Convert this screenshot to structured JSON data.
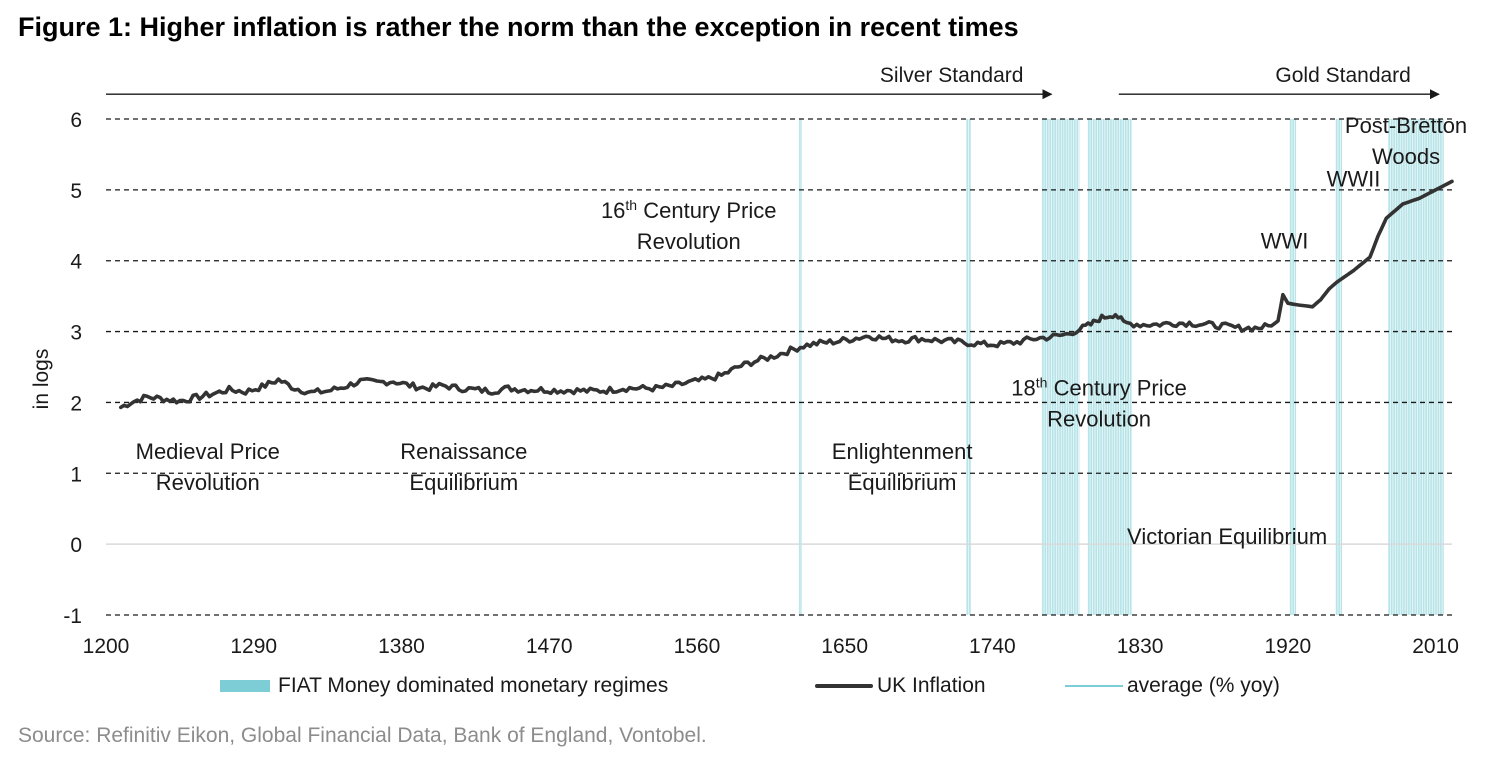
{
  "title": "Figure 1: Higher inflation is rather the norm than the exception in recent times",
  "source": "Source: Refinitiv Eikon, Global Financial Data, Bank of England, Vontobel.",
  "colors": {
    "fiat": "#7ccdd6",
    "line": "#333333",
    "grid": "#1a1a1a",
    "zero": "#d9d9d9",
    "source": "#8c8c8c"
  },
  "chart_data": {
    "type": "line",
    "title": "Figure 1: Higher inflation is rather the norm than the exception in recent times",
    "xlabel": "",
    "ylabel": "in logs",
    "xlim": [
      1200,
      2020
    ],
    "ylim": [
      -1,
      6
    ],
    "x_ticks": [
      "1200",
      "1290",
      "1380",
      "1470",
      "1560",
      "1650",
      "1740",
      "1830",
      "1920",
      "2010"
    ],
    "y_ticks": [
      "-1",
      "0",
      "1",
      "2",
      "3",
      "4",
      "5",
      "6"
    ],
    "grid": "horizontal dashed",
    "legend": {
      "position": "bottom",
      "entries": [
        "FIAT Money dominated monetary regimes",
        "UK Inflation",
        "average (% yoy)"
      ]
    },
    "series": [
      {
        "name": "UK Inflation",
        "x": [
          1209,
          1215,
          1225,
          1235,
          1245,
          1255,
          1265,
          1275,
          1285,
          1295,
          1305,
          1315,
          1325,
          1335,
          1345,
          1355,
          1365,
          1375,
          1385,
          1395,
          1405,
          1415,
          1425,
          1435,
          1445,
          1455,
          1465,
          1475,
          1485,
          1495,
          1505,
          1515,
          1525,
          1535,
          1545,
          1555,
          1565,
          1575,
          1585,
          1595,
          1605,
          1615,
          1625,
          1635,
          1645,
          1655,
          1665,
          1675,
          1685,
          1695,
          1705,
          1715,
          1725,
          1735,
          1745,
          1755,
          1765,
          1775,
          1785,
          1795,
          1800,
          1805,
          1810,
          1815,
          1820,
          1830,
          1840,
          1850,
          1860,
          1870,
          1880,
          1890,
          1900,
          1910,
          1914,
          1917,
          1920,
          1925,
          1935,
          1940,
          1945,
          1950,
          1960,
          1970,
          1975,
          1980,
          1990,
          2000,
          2010,
          2020
        ],
        "values": [
          1.93,
          2.0,
          2.08,
          2.05,
          2.02,
          2.07,
          2.12,
          2.18,
          2.15,
          2.22,
          2.32,
          2.2,
          2.14,
          2.16,
          2.22,
          2.3,
          2.28,
          2.3,
          2.24,
          2.2,
          2.24,
          2.2,
          2.18,
          2.16,
          2.2,
          2.18,
          2.18,
          2.17,
          2.17,
          2.16,
          2.17,
          2.2,
          2.2,
          2.2,
          2.23,
          2.28,
          2.32,
          2.38,
          2.5,
          2.58,
          2.64,
          2.72,
          2.8,
          2.84,
          2.86,
          2.9,
          2.94,
          2.9,
          2.88,
          2.9,
          2.88,
          2.86,
          2.84,
          2.82,
          2.82,
          2.85,
          2.9,
          2.92,
          2.96,
          3.05,
          3.1,
          3.18,
          3.22,
          3.25,
          3.12,
          3.1,
          3.1,
          3.12,
          3.12,
          3.1,
          3.08,
          3.05,
          3.05,
          3.08,
          3.15,
          3.52,
          3.4,
          3.38,
          3.35,
          3.45,
          3.6,
          3.7,
          3.86,
          4.05,
          4.35,
          4.6,
          4.8,
          4.88,
          5.0,
          5.12
        ]
      },
      {
        "name": "average (% yoy)",
        "values": []
      }
    ],
    "fiat_periods": [
      [
        1622,
        1624
      ],
      [
        1724,
        1727
      ],
      [
        1770,
        1793
      ],
      [
        1798,
        1825
      ],
      [
        1921,
        1925
      ],
      [
        1949,
        1953
      ],
      [
        1981,
        2015
      ]
    ],
    "arrows": [
      {
        "label": "Silver Standard",
        "from": 1200,
        "to": 1776,
        "y": 6.35
      },
      {
        "label": "Gold Standard",
        "from": 1817,
        "to": 2012,
        "y": 6.35
      }
    ],
    "annotations": [
      {
        "id": "medieval",
        "lines": [
          "Medieval Price",
          "Revolution"
        ],
        "x": 1262,
        "y": 1.2
      },
      {
        "id": "renaissance",
        "lines": [
          "Renaissance",
          "Equilibrium"
        ],
        "x": 1418,
        "y": 1.2
      },
      {
        "id": "16c",
        "lines": [
          "16th Century Price",
          "Revolution"
        ],
        "x": 1555,
        "y": 4.6,
        "sup": "th"
      },
      {
        "id": "enlightenment",
        "lines": [
          "Enlightenment",
          "Equilibrium"
        ],
        "x": 1685,
        "y": 1.2
      },
      {
        "id": "18c",
        "lines": [
          "18th Century Price",
          "Revolution"
        ],
        "x": 1805,
        "y": 2.1,
        "sup": "th"
      },
      {
        "id": "victorian",
        "lines": [
          "Victorian Equilibrium"
        ],
        "x": 1883,
        "y": 0.0
      },
      {
        "id": "wwi",
        "lines": [
          "WWI"
        ],
        "x": 1918,
        "y": 4.17
      },
      {
        "id": "wwii",
        "lines": [
          "WWII"
        ],
        "x": 1960,
        "y": 5.05
      },
      {
        "id": "post-bretton",
        "lines": [
          "Post-Bretton",
          "Woods"
        ],
        "x": 1992,
        "y": 5.8
      }
    ]
  }
}
